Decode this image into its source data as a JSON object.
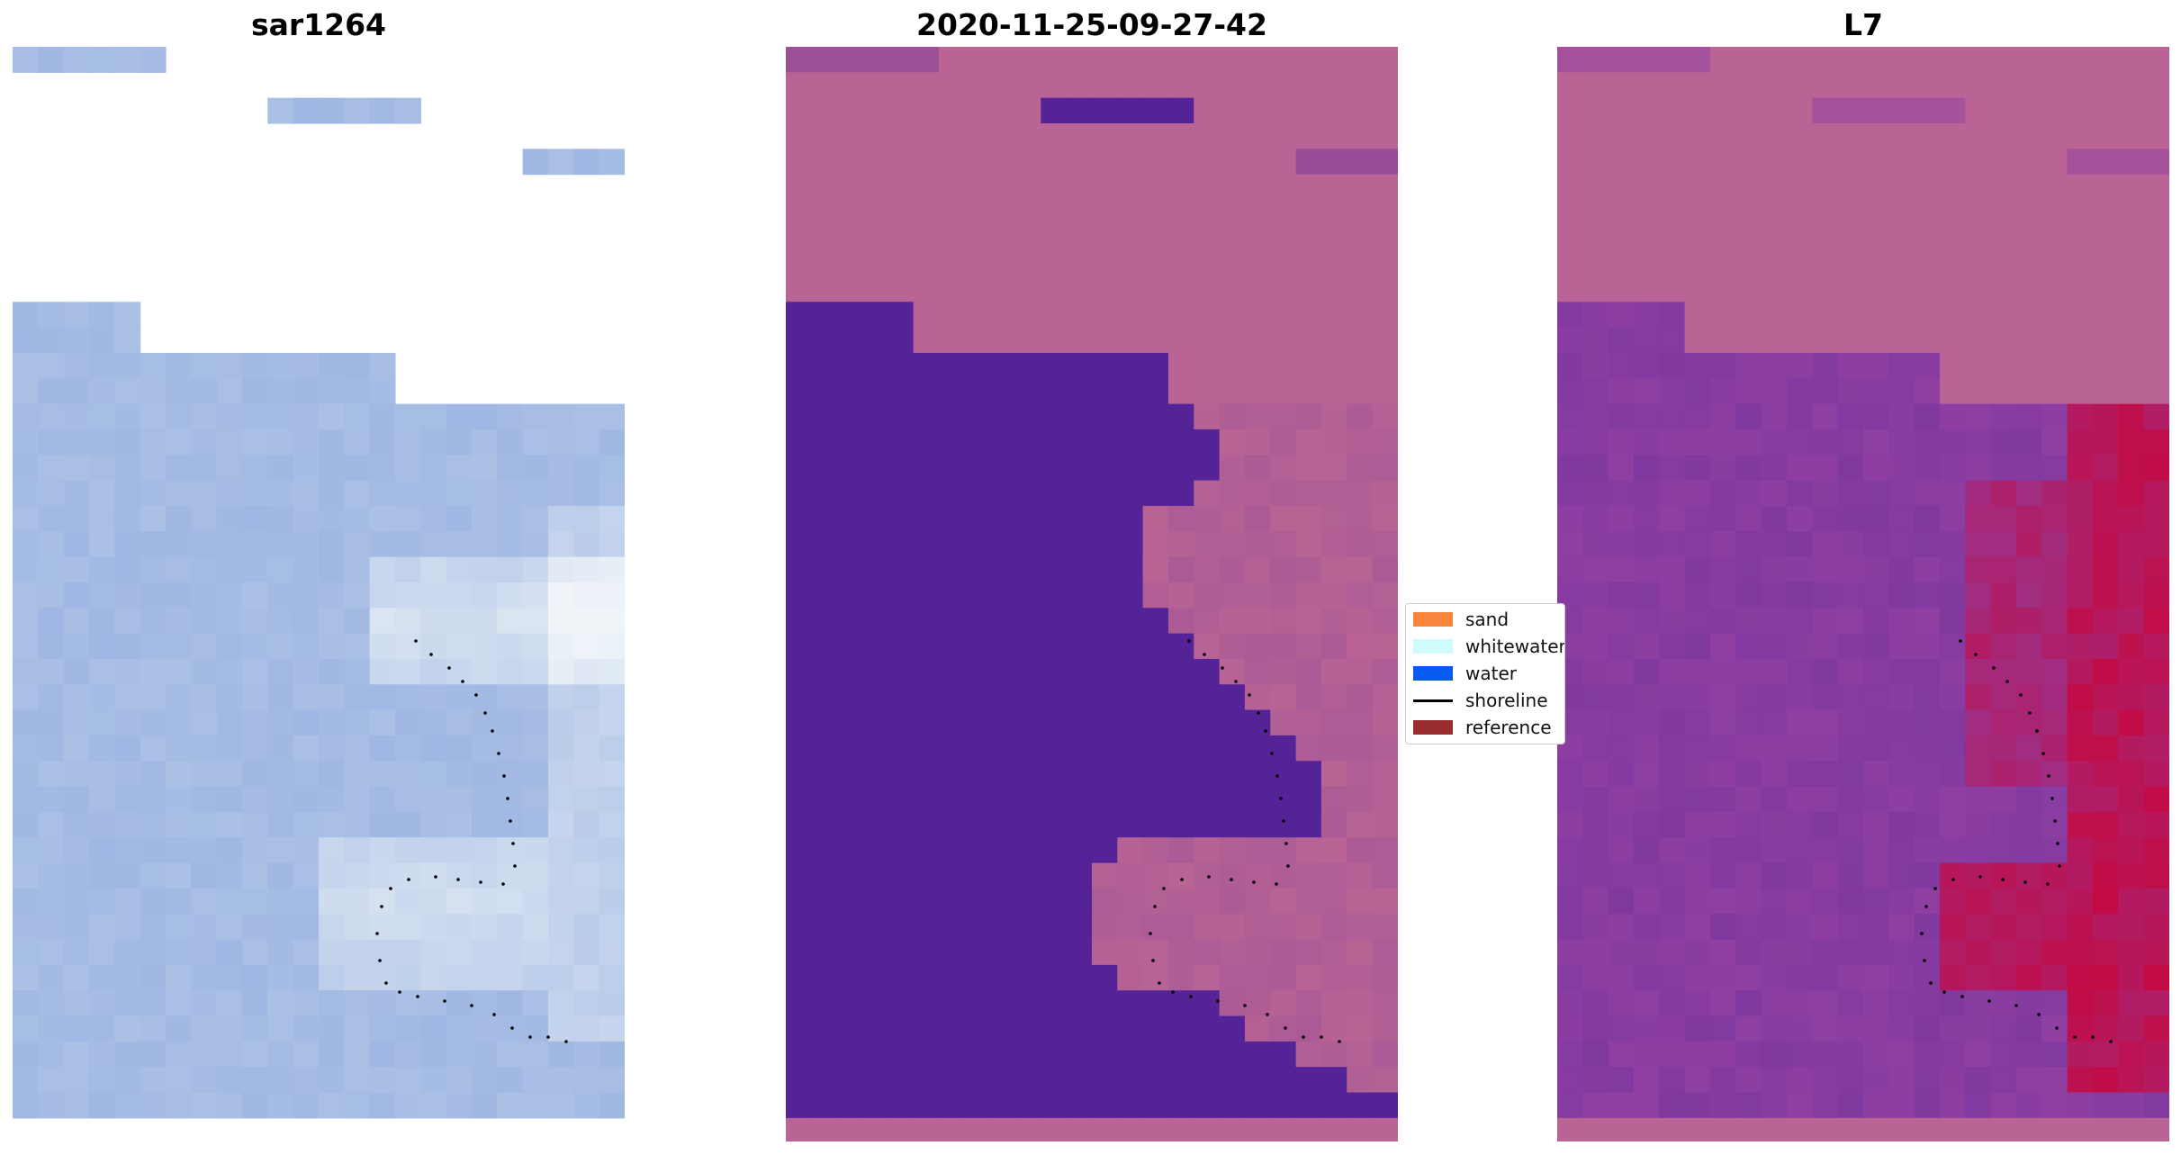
{
  "panels": [
    {
      "title": "sar1264",
      "scheme": "sar"
    },
    {
      "title": "2020-11-25-09-27-42",
      "scheme": "class"
    },
    {
      "title": "L7",
      "scheme": "index"
    }
  ],
  "legend": {
    "items": [
      {
        "label": "sand",
        "kind": "patch",
        "color": "#F8873B"
      },
      {
        "label": "whitewater",
        "kind": "patch",
        "color": "#D0FBFB"
      },
      {
        "label": "water",
        "kind": "patch",
        "color": "#065CF0"
      },
      {
        "label": "shoreline",
        "kind": "line",
        "color": "#000000"
      },
      {
        "label": "reference",
        "kind": "patch",
        "color": "#9B2C30"
      }
    ]
  },
  "colors": {
    "background": "#FFFFFF",
    "land_pink": "#BA6495",
    "water_purple": "#542397",
    "sar_blue": "#9FB7E2",
    "sar_white": "#EEF4F8",
    "index_purple": "#8F3FA2",
    "index_red": "#C8053A",
    "shoreline_dots": "#000000"
  }
}
